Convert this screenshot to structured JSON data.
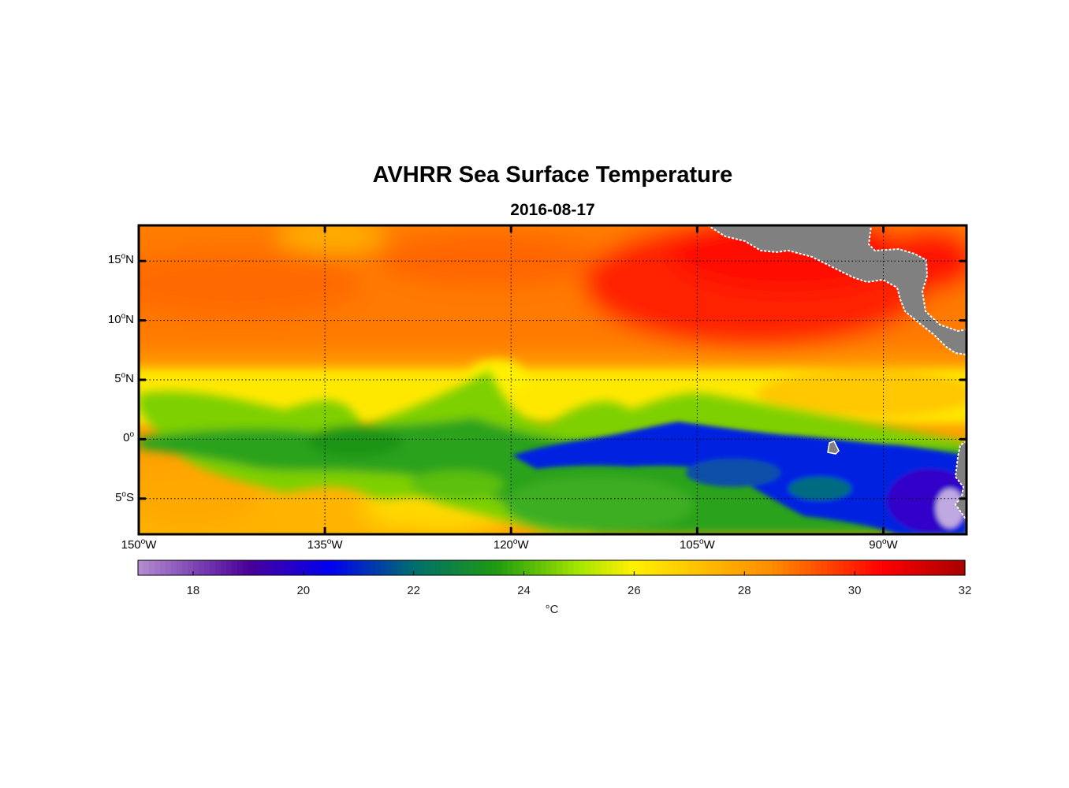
{
  "title": "AVHRR Sea Surface Temperature",
  "subtitle": "2016-08-17",
  "map": {
    "lat_ticks": [
      {
        "deg": "15",
        "hemi": "N",
        "value": 15
      },
      {
        "deg": "10",
        "hemi": "N",
        "value": 10
      },
      {
        "deg": "5",
        "hemi": "N",
        "value": 5
      },
      {
        "deg": "0",
        "hemi": "",
        "value": 0
      },
      {
        "deg": "5",
        "hemi": "S",
        "value": -5
      }
    ],
    "lon_ticks": [
      {
        "deg": "150",
        "hemi": "W",
        "value": -150
      },
      {
        "deg": "135",
        "hemi": "W",
        "value": -135
      },
      {
        "deg": "120",
        "hemi": "W",
        "value": -120
      },
      {
        "deg": "105",
        "hemi": "W",
        "value": -105
      },
      {
        "deg": "90",
        "hemi": "W",
        "value": -90
      }
    ],
    "land_color": "#808080",
    "grid_color": "#000000"
  },
  "colorbar": {
    "min": 17,
    "max": 32,
    "tick_labels": [
      "18",
      "20",
      "22",
      "24",
      "26",
      "28",
      "30",
      "32"
    ],
    "tick_values": [
      18,
      20,
      22,
      24,
      26,
      28,
      30,
      32
    ],
    "units": "°C",
    "stops": [
      {
        "v": 17,
        "color": "#b48ed0"
      },
      {
        "v": 19,
        "color": "#4a0098"
      },
      {
        "v": 20.5,
        "color": "#0000f0"
      },
      {
        "v": 22,
        "color": "#006e6e"
      },
      {
        "v": 23.5,
        "color": "#1e9a10"
      },
      {
        "v": 25,
        "color": "#a6e600"
      },
      {
        "v": 26,
        "color": "#fff000"
      },
      {
        "v": 28.5,
        "color": "#ff8c00"
      },
      {
        "v": 30.5,
        "color": "#ff0000"
      },
      {
        "v": 32,
        "color": "#a60000"
      }
    ]
  }
}
